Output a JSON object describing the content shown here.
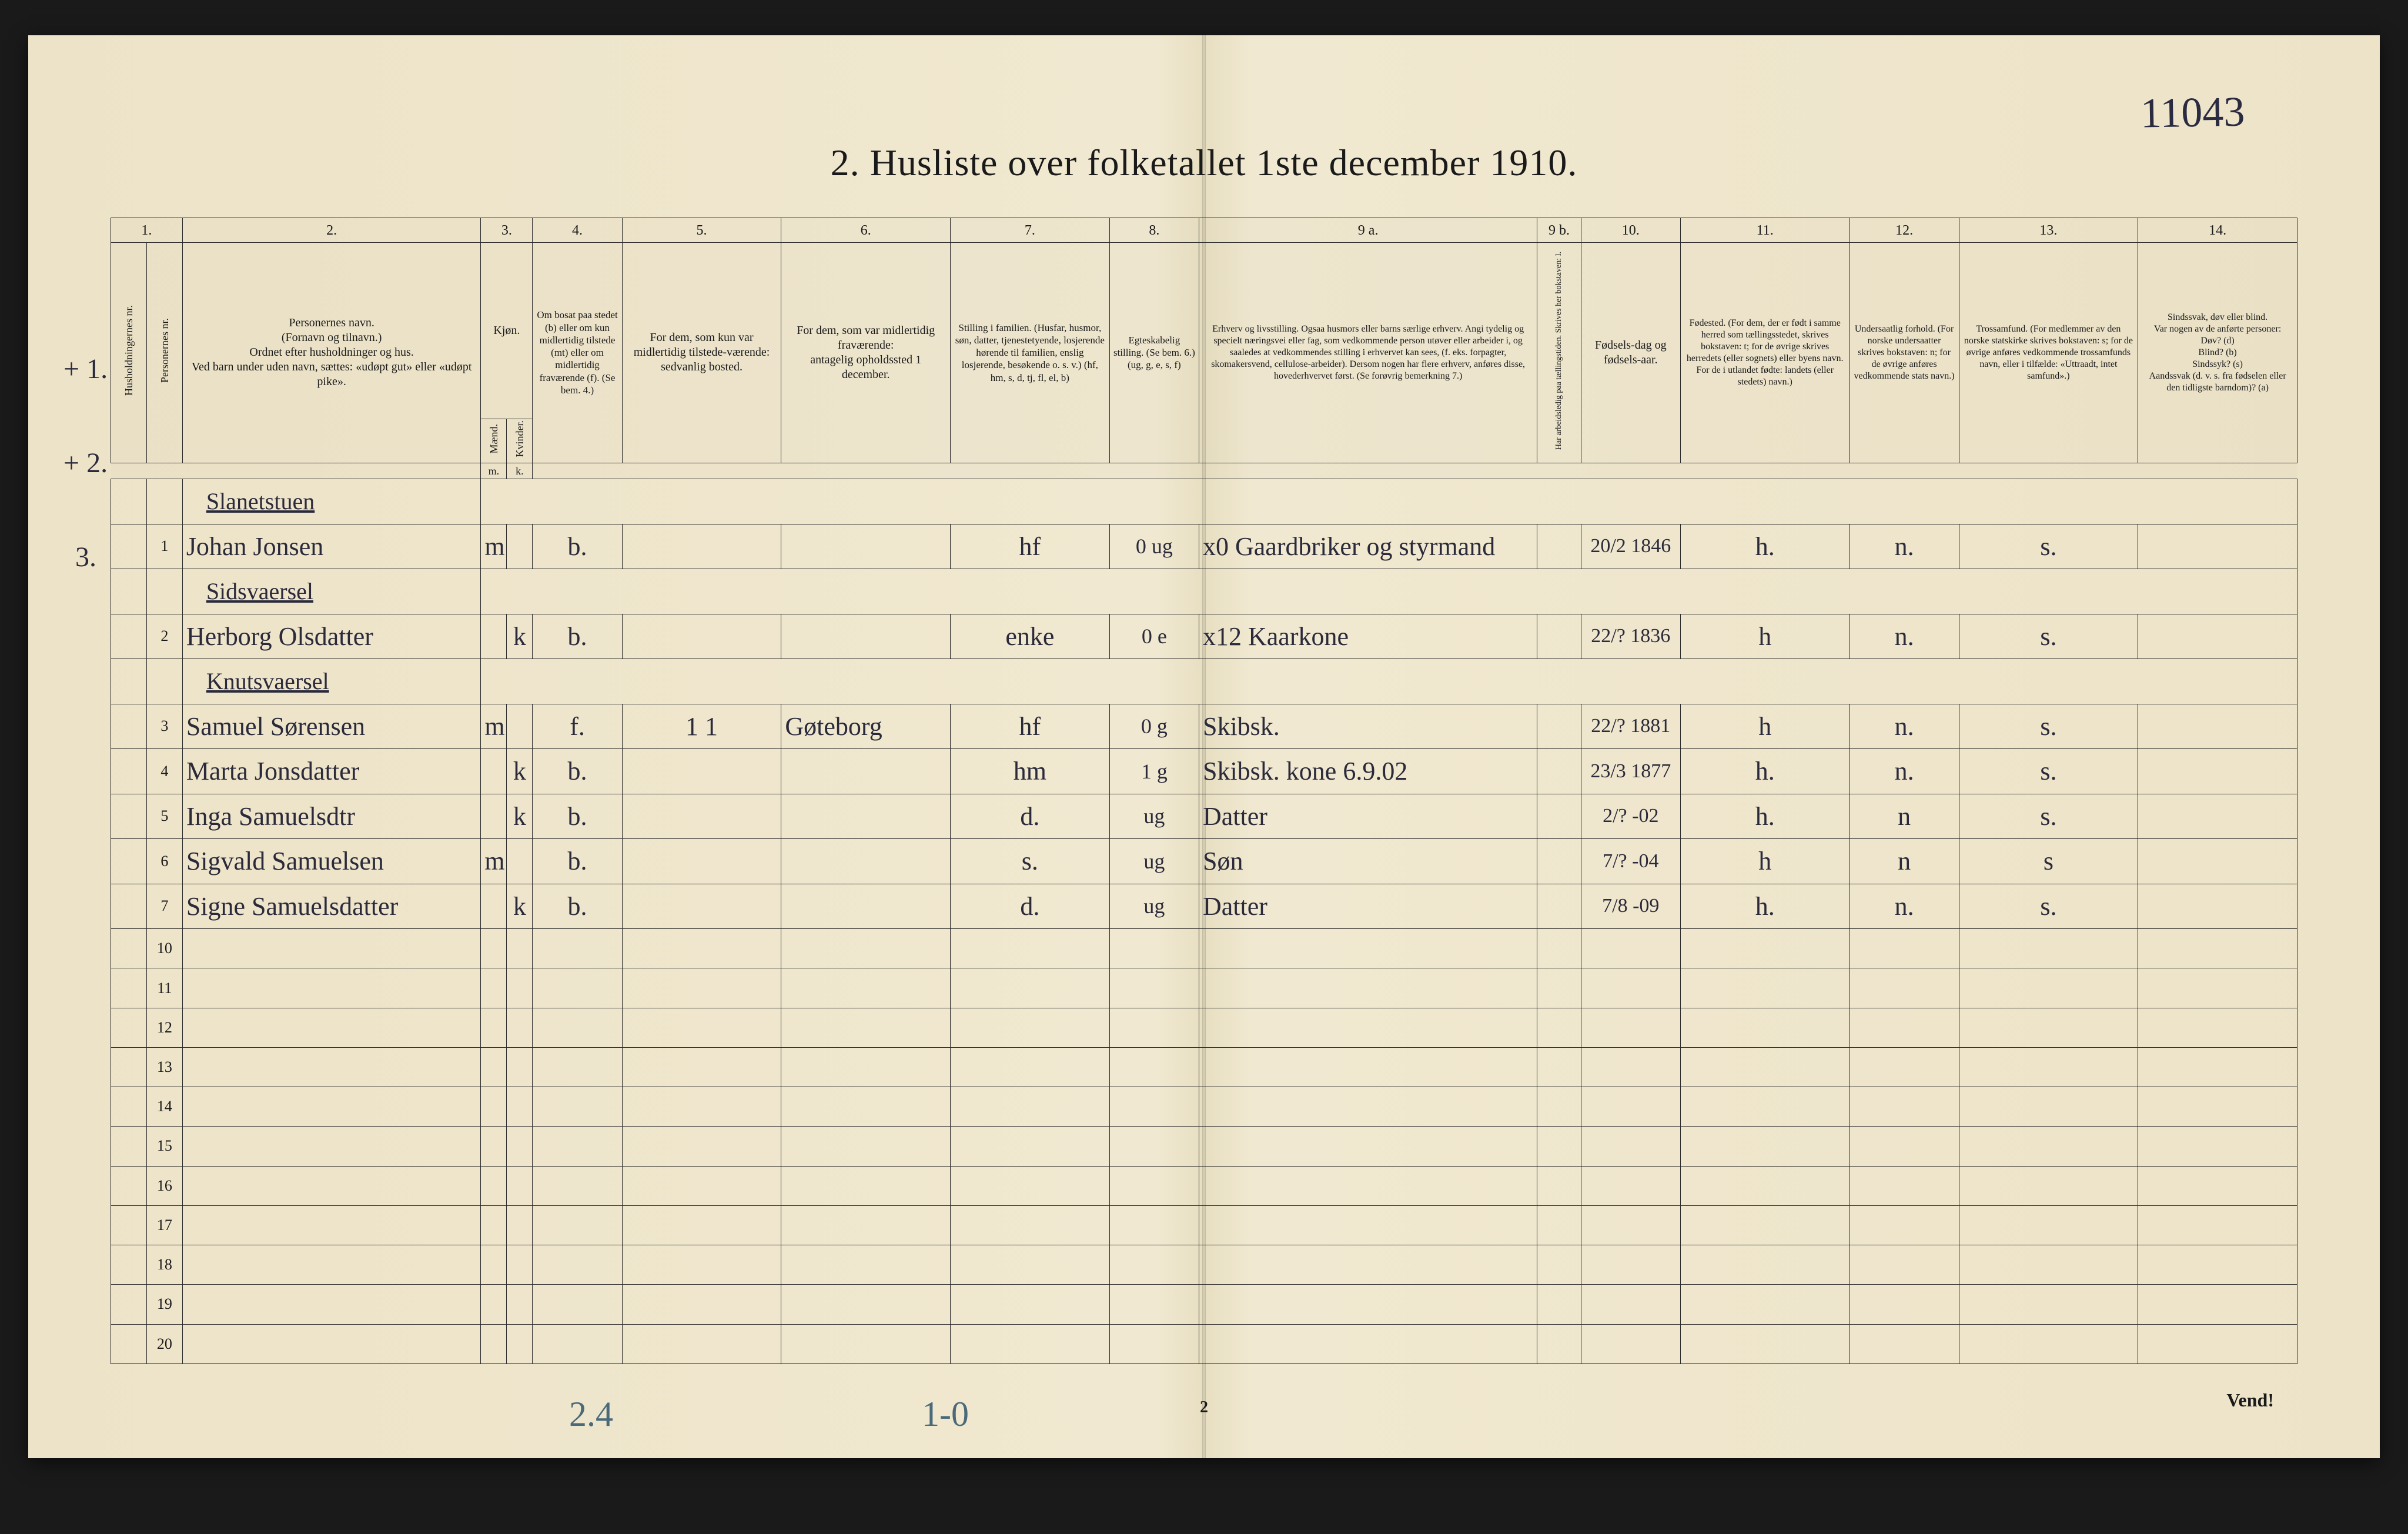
{
  "document": {
    "title": "2.  Husliste over folketallet 1ste december 1910.",
    "handwritten_top_right": "11043",
    "footer_page_number": "2",
    "footer_vend": "Vend!",
    "footer_handwritten_left": "2.4",
    "footer_handwritten_mid": "1-0"
  },
  "margin_marks": {
    "plus1": "+ 1.",
    "plus2": "+ 2.",
    "three": "3."
  },
  "column_numbers": [
    "1.",
    "2.",
    "3.",
    "4.",
    "5.",
    "6.",
    "7.",
    "8.",
    "9 a.",
    "9 b.",
    "10.",
    "11.",
    "12.",
    "13.",
    "14."
  ],
  "headers": {
    "c1a": "Husholdningernes nr.",
    "c1b": "Personernes nr.",
    "c2": "Personernes navn.\n(Fornavn og tilnavn.)\nOrdnet efter husholdninger og hus.\nVed barn under uden navn, sættes: «udøpt gut» eller «udøpt pike».",
    "c3": "Kjøn.",
    "c3a": "Mænd.",
    "c3b": "Kvinder.",
    "c4": "Om bosat paa stedet (b) eller om kun midlertidig tilstede (mt) eller om midlertidig fraværende (f). (Se bem. 4.)",
    "c5": "For dem, som kun var midlertidig tilstede-værende:\nsedvanlig bosted.",
    "c6": "For dem, som var midlertidig fraværende:\nantagelig opholdssted 1 december.",
    "c7": "Stilling i familien.\n(Husfar, husmor, søn, datter, tjenestetyende, losjerende hørende til familien, enslig losjerende, besøkende o. s. v.)\n(hf, hm, s, d, tj, fl, el, b)",
    "c8": "Egteskabelig stilling.\n(Se bem. 6.)\n(ug, g, e, s, f)",
    "c9a": "Erhverv og livsstilling.\nOgsaa husmors eller barns særlige erhverv. Angi tydelig og specielt næringsvei eller fag, som vedkommende person utøver eller arbeider i, og saaledes at vedkommendes stilling i erhvervet kan sees, (f. eks. forpagter, skomakersvend, cellulose-arbeider). Dersom nogen har flere erhverv, anføres disse, hovederhvervet først. (Se forøvrig bemerkning 7.)",
    "c9b": "Har arbeidsledig paa tællingstiden. Skrives her bokstaven: l.",
    "c10": "Fødsels-dag og fødsels-aar.",
    "c11": "Fødested.\n(For dem, der er født i samme herred som tællingsstedet, skrives bokstaven: t; for de øvrige skrives herredets (eller sognets) eller byens navn. For de i utlandet fødte: landets (eller stedets) navn.)",
    "c12": "Undersaatlig forhold.\n(For norske undersaatter skrives bokstaven: n; for de øvrige anføres vedkommende stats navn.)",
    "c13": "Trossamfund.\n(For medlemmer av den norske statskirke skrives bokstaven: s; for de øvrige anføres vedkommende trossamfunds navn, eller i tilfælde: «Uttraadt, intet samfund».)",
    "c14": "Sindssvak, døv eller blind.\nVar nogen av de anførte personer:\nDøv? (d)\nBlind? (b)\nSindssyk? (s)\nAandssvak (d. v. s. fra fødselen eller den tidligste barndom)? (a)"
  },
  "rows": [
    {
      "hh": "",
      "pn": "1",
      "name_above": "Slanetstuen",
      "name": "Johan Jonsen",
      "m": "m",
      "k": "",
      "bos": "b.",
      "c5": "",
      "c6": "",
      "stil": "hf",
      "egte": "0   ug",
      "erhv": "x0   Gaardbriker og styrmand",
      "c9b": "",
      "dob": "20/2 1846",
      "fsted": "h.",
      "und": "n.",
      "tro": "s.",
      "c14": ""
    },
    {
      "hh": "",
      "pn": "2",
      "name_above": "Sidsvaersel",
      "name": "Herborg Olsdatter",
      "m": "",
      "k": "k",
      "bos": "b.",
      "c5": "",
      "c6": "",
      "stil": "enke",
      "egte": "0   e",
      "erhv": "x12 Kaarkone",
      "c9b": "",
      "dob": "22/? 1836",
      "fsted": "h",
      "und": "n.",
      "tro": "s.",
      "c14": ""
    },
    {
      "hh": "",
      "pn": "3",
      "name_above": "Knutsvaersel",
      "name": "Samuel Sørensen",
      "m": "m",
      "k": "",
      "bos": "f.",
      "c5": "1       1",
      "c6": "Gøteborg",
      "stil": "hf",
      "egte": "0   g",
      "erhv": "Skibsk.",
      "c9b": "",
      "dob": "22/? 1881",
      "fsted": "h",
      "und": "n.",
      "tro": "s.",
      "c14": ""
    },
    {
      "hh": "",
      "pn": "4",
      "name_above": "",
      "name": "Marta Jonsdatter",
      "m": "",
      "k": "k",
      "bos": "b.",
      "c5": "",
      "c6": "",
      "stil": "hm",
      "egte": "1   g",
      "erhv": "Skibsk. kone   6.9.02",
      "c9b": "",
      "dob": "23/3 1877",
      "fsted": "h.",
      "und": "n.",
      "tro": "s.",
      "c14": ""
    },
    {
      "hh": "",
      "pn": "5",
      "name_above": "",
      "name": "Inga Samuelsdtr",
      "m": "",
      "k": "k",
      "bos": "b.",
      "c5": "",
      "c6": "",
      "stil": "d.",
      "egte": "ug",
      "erhv": "Datter",
      "c9b": "",
      "dob": "2/? -02",
      "fsted": "h.",
      "und": "n",
      "tro": "s.",
      "c14": ""
    },
    {
      "hh": "",
      "pn": "6",
      "name_above": "",
      "name": "Sigvald Samuelsen",
      "m": "m",
      "k": "",
      "bos": "b.",
      "c5": "",
      "c6": "",
      "stil": "s.",
      "egte": "ug",
      "erhv": "Søn",
      "c9b": "",
      "dob": "7/? -04",
      "fsted": "h",
      "und": "n",
      "tro": "s",
      "c14": ""
    },
    {
      "hh": "",
      "pn": "7",
      "name_above": "",
      "name": "Signe Samuelsdatter",
      "m": "",
      "k": "k",
      "bos": "b.",
      "c5": "",
      "c6": "",
      "stil": "d.",
      "egte": "ug",
      "erhv": "Datter",
      "c9b": "",
      "dob": "7/8 -09",
      "fsted": "h.",
      "und": "n.",
      "tro": "s.",
      "c14": ""
    }
  ],
  "empty_row_count": 11,
  "row_number_start_after": 10,
  "colors": {
    "paper": "#ede3c8",
    "ink": "#1a1a1a",
    "handwriting": "#2a2a3a",
    "blue_pencil": "#4a6a7a"
  },
  "col_widths_pct": [
    1.8,
    1.8,
    15,
    1.3,
    1.3,
    4.5,
    8,
    8.5,
    8,
    4.5,
    17,
    2.2,
    5,
    8.5,
    5.5,
    9,
    8
  ]
}
